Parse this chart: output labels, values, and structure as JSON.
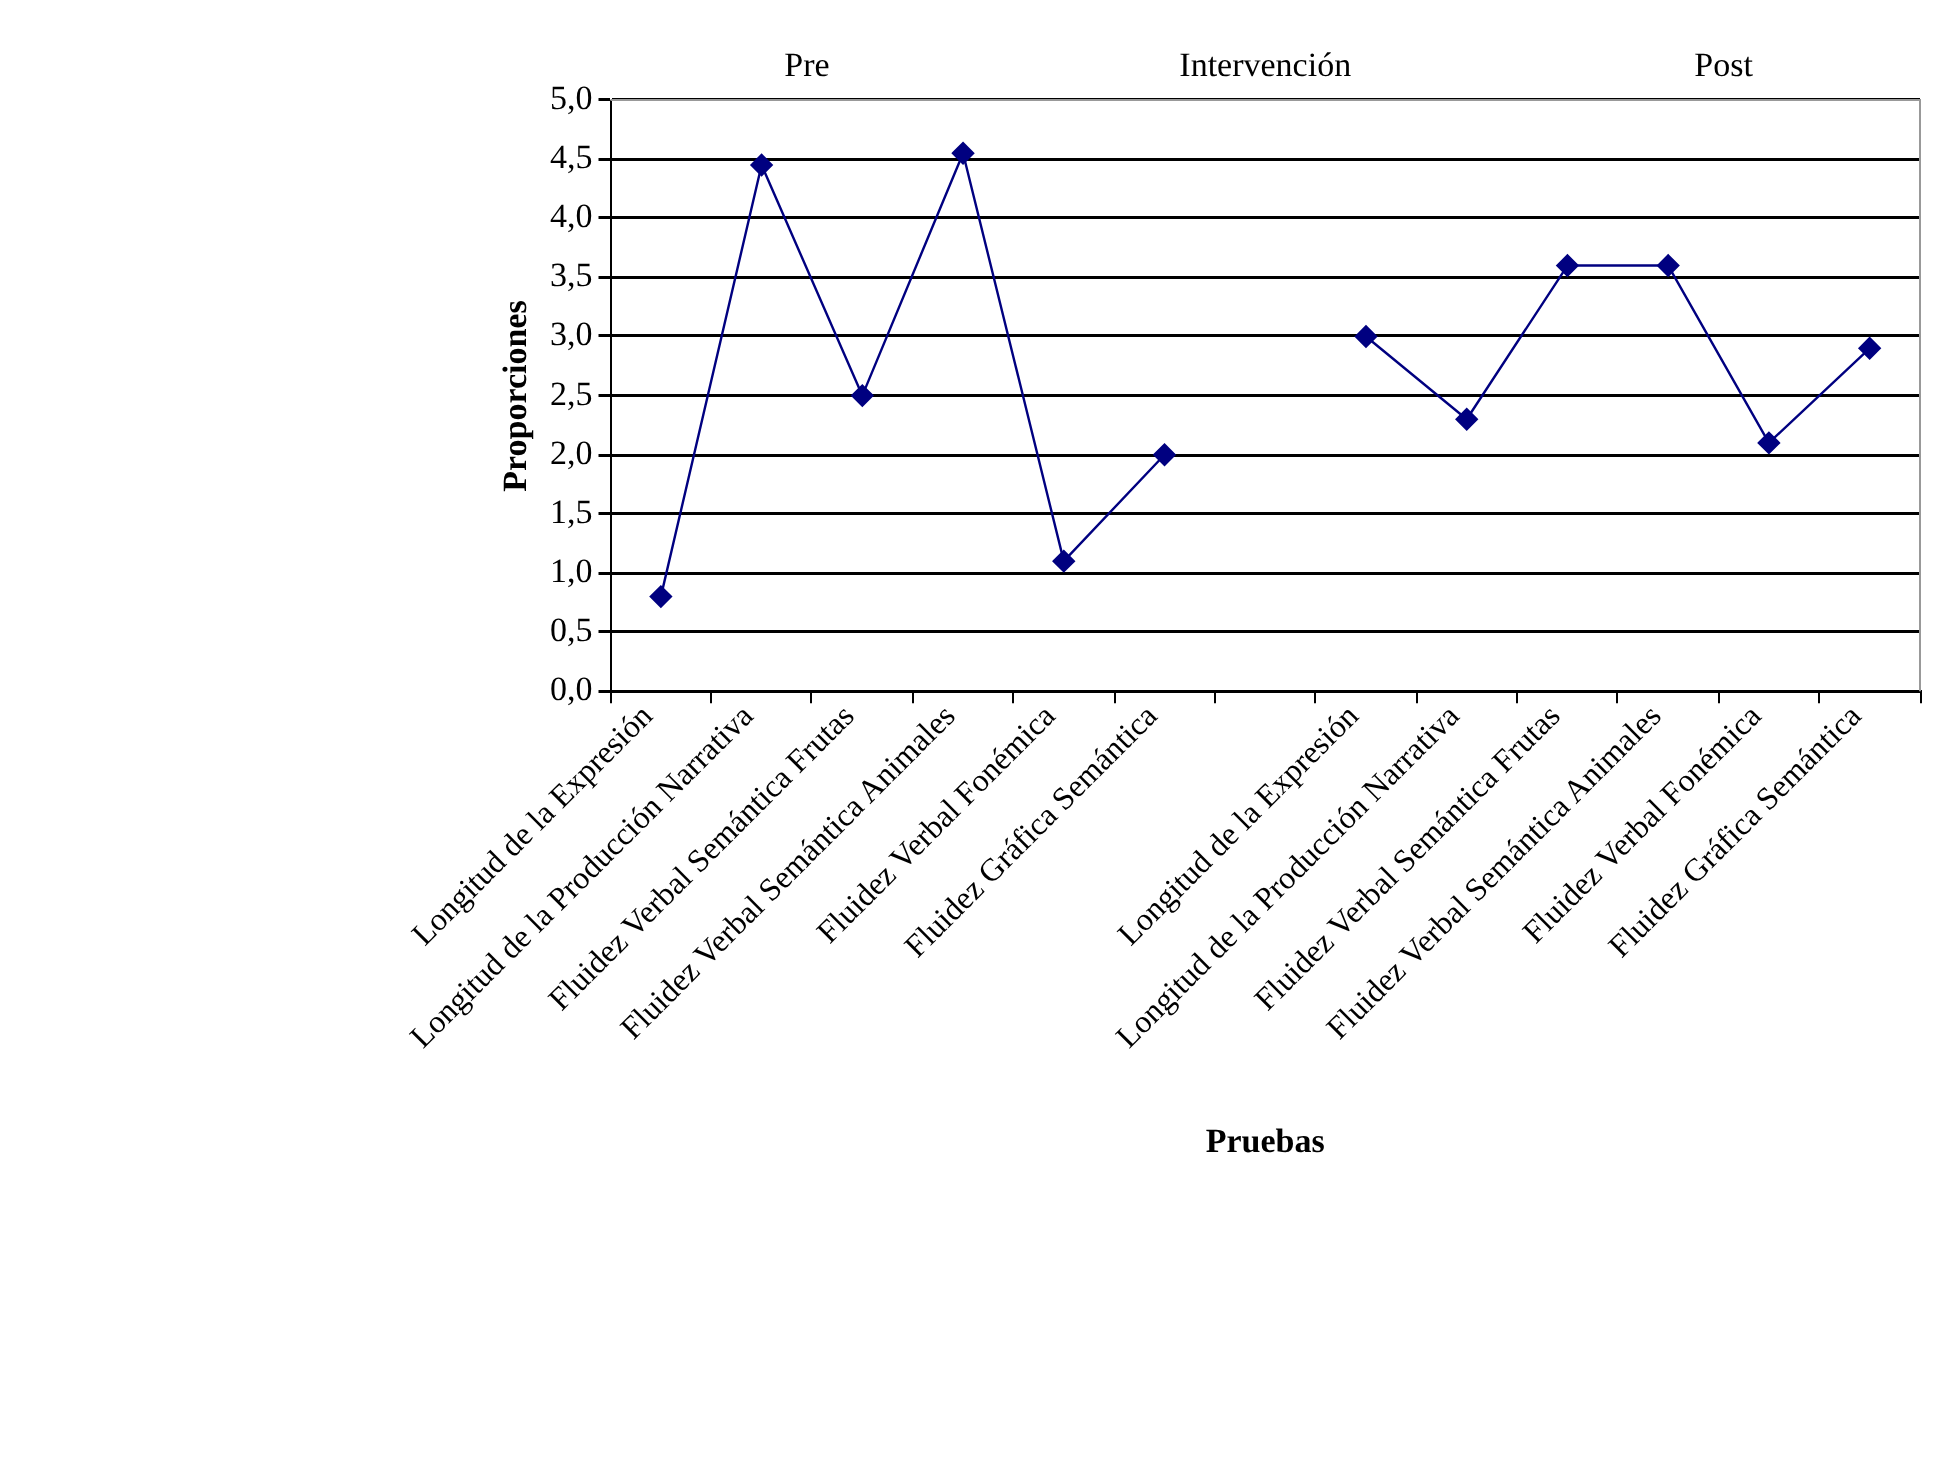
{
  "chart_data": {
    "type": "line",
    "xlabel": "Pruebas",
    "ylabel": "Proporciones",
    "annotations": [
      "Pre",
      "Intervención",
      "Post"
    ],
    "categories": [
      "Longitud de la Expresión",
      "Longitud de la Producción Narrativa",
      "Fluidez Verbal Semántica Frutas",
      "Fluidez Verbal Semántica Animales",
      "Fluidez Verbal Fonémica",
      "Fluidez Gráfica Semántica",
      null,
      "Longitud de la Expresión",
      "Longitud de la Producción Narrativa",
      "Fluidez Verbal Semántica Frutas",
      "Fluidez Verbal Semántica Animales",
      "Fluidez Verbal Fonémica",
      "Fluidez Gráfica Semántica"
    ],
    "series": [
      {
        "color": "#000080",
        "values": [
          0.8,
          4.45,
          2.5,
          4.55,
          1.1,
          2.0,
          null,
          3.0,
          2.3,
          3.6,
          3.6,
          2.1,
          2.9
        ]
      }
    ],
    "ylim": [
      0,
      5
    ],
    "yticks": [
      {
        "value": 0,
        "label": "0,0"
      },
      {
        "value": 0.5,
        "label": "0,5"
      },
      {
        "value": 1,
        "label": "1,0"
      },
      {
        "value": 1.5,
        "label": "1,5"
      },
      {
        "value": 2,
        "label": "2,0"
      },
      {
        "value": 2.5,
        "label": "2,5"
      },
      {
        "value": 3,
        "label": "3,0"
      },
      {
        "value": 3.5,
        "label": "3,5"
      },
      {
        "value": 4,
        "label": "4,0"
      },
      {
        "value": 4.5,
        "label": "4,5"
      },
      {
        "value": 5,
        "label": "5,0"
      }
    ],
    "grid": "y",
    "legend": false,
    "marker": "diamond",
    "line_style": "solid"
  }
}
